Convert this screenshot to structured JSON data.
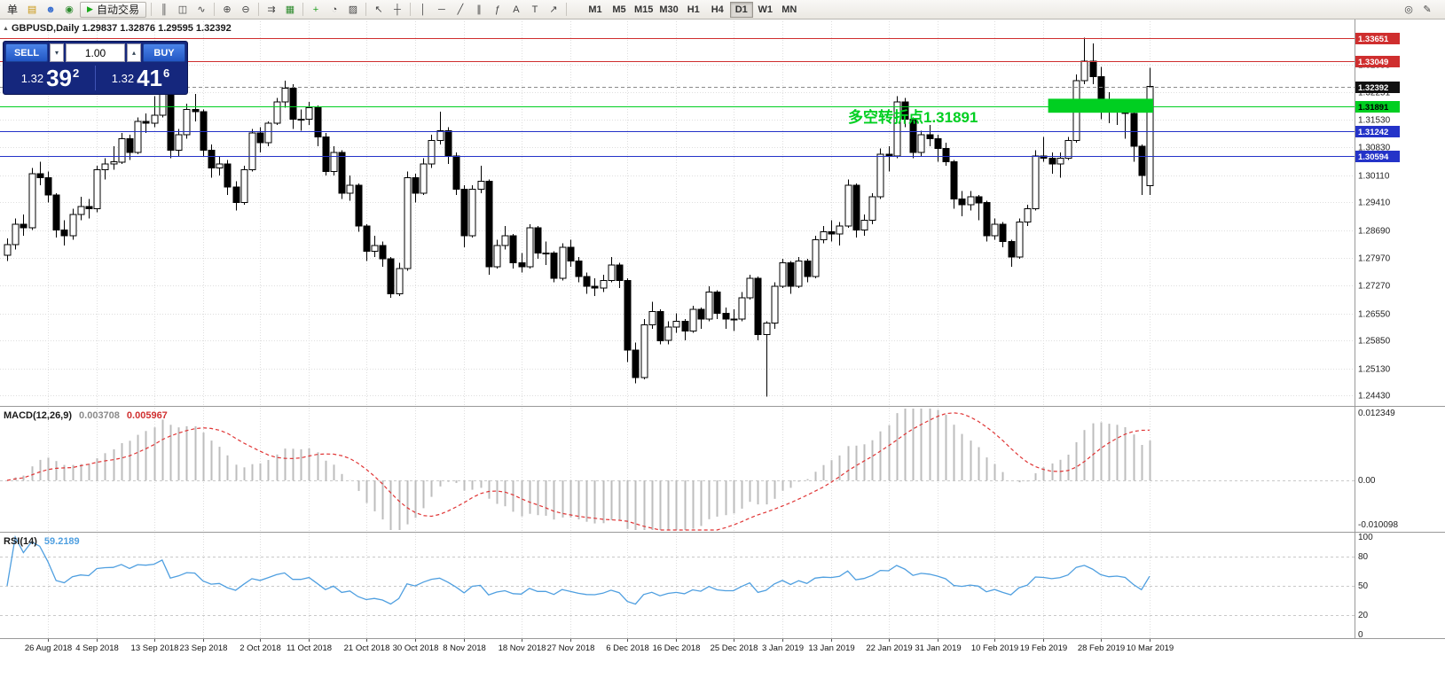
{
  "toolbar": {
    "left_text": "单",
    "autotrading_icon": "▶",
    "autotrading_label": "自动交易",
    "icons_left": [
      {
        "n": "charts-grid-icon",
        "g": "▤",
        "c": "#c8950f"
      },
      {
        "n": "profile-icon",
        "g": "☻",
        "c": "#3a6fd0"
      },
      {
        "n": "community-icon",
        "g": "◉",
        "c": "#2c8a2c"
      }
    ],
    "icons_main": [
      {
        "sep": 1
      },
      {
        "n": "bar-chart-icon",
        "g": "║"
      },
      {
        "n": "candlestick-chart-icon",
        "g": "◫"
      },
      {
        "n": "line-chart-icon",
        "g": "∿"
      },
      {
        "sep": 1
      },
      {
        "n": "zoom-in-icon",
        "g": "⊕"
      },
      {
        "n": "zoom-out-icon",
        "g": "⊖"
      },
      {
        "sep": 1
      },
      {
        "n": "auto-scroll-icon",
        "g": "⇉"
      },
      {
        "n": "chart-shift-icon",
        "g": "▦",
        "c": "#2c8a2c"
      },
      {
        "sep": 1
      },
      {
        "n": "indicators-icon",
        "g": "+",
        "c": "#1f9d1f"
      },
      {
        "n": "periods-icon",
        "g": "◔"
      },
      {
        "n": "templates-icon",
        "g": "▨"
      },
      {
        "sep": 1
      },
      {
        "n": "cursor-icon",
        "g": "↖"
      },
      {
        "n": "crosshair-icon",
        "g": "┼"
      },
      {
        "sep": 1
      },
      {
        "n": "vertical-line-icon",
        "g": "│"
      },
      {
        "n": "horizontal-line-icon",
        "g": "─"
      },
      {
        "n": "trendline-icon",
        "g": "╱"
      },
      {
        "n": "channel-icon",
        "g": "∥"
      },
      {
        "n": "fibonacci-icon",
        "g": "ƒ"
      },
      {
        "n": "text-icon",
        "g": "A"
      },
      {
        "n": "label-icon",
        "g": "T"
      },
      {
        "n": "arrows-icon",
        "g": "↗"
      },
      {
        "sep": 1
      }
    ],
    "timeframes": [
      "M1",
      "M5",
      "M15",
      "M30",
      "H1",
      "H4",
      "D1",
      "W1",
      "MN"
    ],
    "active_timeframe": "D1",
    "icons_right": [
      {
        "n": "search-icon",
        "g": "◎"
      },
      {
        "n": "settings-icon",
        "g": "✎"
      }
    ]
  },
  "chart": {
    "symbol_icon": "▲"
  },
  "trade_panel": {
    "sell_label": "SELL",
    "buy_label": "BUY",
    "lot": "1.00",
    "down_glyph": "▾",
    "up_glyph": "▴",
    "sell_price_main": "1.32",
    "sell_price_big": "39",
    "sell_price_sup": "2",
    "buy_price_main": "1.32",
    "buy_price_big": "41",
    "buy_price_sup": "6"
  },
  "chart_data": [
    {
      "type": "candlestick",
      "symbol": "GBPUSD",
      "period": "Daily",
      "title": "GBPUSD,Daily 1.29837 1.32876 1.29595 1.32392",
      "ohlc_display": {
        "open": 1.29837,
        "high": 1.32876,
        "low": 1.29595,
        "close": 1.32392
      },
      "x_labels": [
        "26 Aug 2018",
        "4 Sep 2018",
        "13 Sep 2018",
        "23 Sep 2018",
        "2 Oct 2018",
        "11 Oct 2018",
        "21 Oct 2018",
        "30 Oct 2018",
        "8 Nov 2018",
        "18 Nov 2018",
        "27 Nov 2018",
        "6 Dec 2018",
        "16 Dec 2018",
        "25 Dec 2018",
        "3 Jan 2019",
        "13 Jan 2019",
        "22 Jan 2019",
        "31 Jan 2019",
        "10 Feb 2019",
        "19 Feb 2019",
        "28 Feb 2019",
        "10 Mar 2019"
      ],
      "y_axis_labels": [
        "1.32958",
        "1.32251",
        "1.31530",
        "1.30830",
        "1.30110",
        "1.29410",
        "1.28690",
        "1.27970",
        "1.27270",
        "1.26550",
        "1.25850",
        "1.25130",
        "1.24430"
      ],
      "lines": [
        {
          "price": 1.33651,
          "color": "#cf2e2e",
          "style": "solid",
          "badge_bg": "#cf2e2e",
          "badge_text": "#ffffff",
          "label": "1.33651"
        },
        {
          "price": 1.33049,
          "color": "#cf2e2e",
          "style": "solid",
          "badge_bg": "#cf2e2e",
          "badge_text": "#ffffff",
          "label": "1.33049"
        },
        {
          "price": 1.32392,
          "color": "#8a8a8a",
          "style": "dash",
          "badge_bg": "#111111",
          "badge_text": "#ffffff",
          "label": "1.32392"
        },
        {
          "price": 1.31891,
          "color": "#00cf21",
          "style": "solid",
          "badge_bg": "#00cf21",
          "badge_text": "#000000",
          "label": "1.31891"
        },
        {
          "price": 1.31242,
          "color": "#2433c8",
          "style": "solid",
          "badge_bg": "#2433c8",
          "badge_text": "#ffffff",
          "label": "1.31242"
        },
        {
          "price": 1.30594,
          "color": "#2433c8",
          "style": "solid",
          "badge_bg": "#2433c8",
          "badge_text": "#ffffff",
          "label": "1.30594"
        }
      ],
      "highlight_rect": {
        "x_start_index": 128,
        "x_end_index": 140,
        "price_top": 1.3208,
        "price_bottom": 1.3172,
        "color": "#00cf21"
      },
      "annotation": {
        "text": "多空转折点1.31891",
        "color": "#00cf21"
      },
      "candles": [
        [
          1.2805,
          1.2848,
          1.279,
          1.2832
        ],
        [
          1.2832,
          1.29,
          1.282,
          1.2885
        ],
        [
          1.2885,
          1.291,
          1.2855,
          1.2875
        ],
        [
          1.2875,
          1.303,
          1.287,
          1.3015
        ],
        [
          1.3015,
          1.3045,
          1.2985,
          1.3005
        ],
        [
          1.3005,
          1.302,
          1.294,
          1.296
        ],
        [
          1.296,
          1.2965,
          1.285,
          1.287
        ],
        [
          1.287,
          1.2895,
          1.283,
          1.2855
        ],
        [
          1.2855,
          1.2925,
          1.2845,
          1.291
        ],
        [
          1.291,
          1.2955,
          1.2895,
          1.293
        ],
        [
          1.293,
          1.295,
          1.29,
          1.2925
        ],
        [
          1.2925,
          1.3035,
          1.2915,
          1.3025
        ],
        [
          1.3025,
          1.3055,
          1.3,
          1.304
        ],
        [
          1.304,
          1.3085,
          1.3025,
          1.3045
        ],
        [
          1.3045,
          1.312,
          1.304,
          1.3105
        ],
        [
          1.3105,
          1.3115,
          1.305,
          1.307
        ],
        [
          1.307,
          1.316,
          1.3065,
          1.315
        ],
        [
          1.315,
          1.317,
          1.312,
          1.3145
        ],
        [
          1.3145,
          1.3215,
          1.3135,
          1.3165
        ],
        [
          1.3165,
          1.3298,
          1.316,
          1.3265
        ],
        [
          1.3265,
          1.327,
          1.3055,
          1.3075
        ],
        [
          1.3075,
          1.313,
          1.306,
          1.3115
        ],
        [
          1.3115,
          1.3195,
          1.3105,
          1.318
        ],
        [
          1.318,
          1.322,
          1.315,
          1.3175
        ],
        [
          1.3175,
          1.318,
          1.306,
          1.3075
        ],
        [
          1.3075,
          1.309,
          1.3005,
          1.303
        ],
        [
          1.303,
          1.306,
          1.301,
          1.304
        ],
        [
          1.304,
          1.305,
          1.296,
          1.298
        ],
        [
          1.298,
          1.2995,
          1.292,
          1.294
        ],
        [
          1.294,
          1.3035,
          1.2935,
          1.3025
        ],
        [
          1.3025,
          1.313,
          1.302,
          1.312
        ],
        [
          1.312,
          1.3135,
          1.307,
          1.3095
        ],
        [
          1.3095,
          1.315,
          1.3085,
          1.3145
        ],
        [
          1.3145,
          1.321,
          1.314,
          1.32
        ],
        [
          1.32,
          1.3255,
          1.3185,
          1.3235
        ],
        [
          1.3235,
          1.3245,
          1.313,
          1.3155
        ],
        [
          1.3155,
          1.318,
          1.3125,
          1.3155
        ],
        [
          1.3155,
          1.32,
          1.314,
          1.3185
        ],
        [
          1.3185,
          1.319,
          1.3085,
          1.311
        ],
        [
          1.311,
          1.312,
          1.301,
          1.302
        ],
        [
          1.302,
          1.3085,
          1.301,
          1.307
        ],
        [
          1.307,
          1.3075,
          1.295,
          1.2965
        ],
        [
          1.2965,
          1.301,
          1.2945,
          1.2985
        ],
        [
          1.2985,
          1.299,
          1.2865,
          1.288
        ],
        [
          1.288,
          1.2885,
          1.279,
          1.2815
        ],
        [
          1.2815,
          1.2855,
          1.28,
          1.283
        ],
        [
          1.283,
          1.284,
          1.2775,
          1.2795
        ],
        [
          1.2795,
          1.28,
          1.2695,
          1.2705
        ],
        [
          1.2705,
          1.2785,
          1.27,
          1.277
        ],
        [
          1.277,
          1.302,
          1.2765,
          1.3005
        ],
        [
          1.3005,
          1.3015,
          1.294,
          1.2965
        ],
        [
          1.2965,
          1.3055,
          1.296,
          1.304
        ],
        [
          1.304,
          1.3115,
          1.303,
          1.31
        ],
        [
          1.31,
          1.3175,
          1.309,
          1.3125
        ],
        [
          1.3125,
          1.3135,
          1.304,
          1.306
        ],
        [
          1.306,
          1.307,
          1.296,
          1.2975
        ],
        [
          1.2975,
          1.2985,
          1.2825,
          1.2855
        ],
        [
          1.2855,
          1.2985,
          1.285,
          1.2975
        ],
        [
          1.2975,
          1.3035,
          1.2965,
          1.2995
        ],
        [
          1.2995,
          1.3,
          1.2755,
          1.2775
        ],
        [
          1.2775,
          1.2845,
          1.277,
          1.283
        ],
        [
          1.283,
          1.288,
          1.282,
          1.2855
        ],
        [
          1.2855,
          1.286,
          1.277,
          1.2785
        ],
        [
          1.2785,
          1.281,
          1.276,
          1.2775
        ],
        [
          1.2775,
          1.2885,
          1.277,
          1.2875
        ],
        [
          1.2875,
          1.288,
          1.2795,
          1.281
        ],
        [
          1.281,
          1.284,
          1.278,
          1.281
        ],
        [
          1.281,
          1.2815,
          1.2735,
          1.2745
        ],
        [
          1.2745,
          1.2835,
          1.274,
          1.2825
        ],
        [
          1.2825,
          1.2845,
          1.2775,
          1.279
        ],
        [
          1.279,
          1.28,
          1.2735,
          1.275
        ],
        [
          1.275,
          1.276,
          1.2705,
          1.2725
        ],
        [
          1.2725,
          1.2745,
          1.27,
          1.272
        ],
        [
          1.272,
          1.2755,
          1.271,
          1.274
        ],
        [
          1.274,
          1.28,
          1.2735,
          1.278
        ],
        [
          1.278,
          1.2785,
          1.272,
          1.274
        ],
        [
          1.274,
          1.2745,
          1.253,
          1.256
        ],
        [
          1.256,
          1.258,
          1.2475,
          1.249
        ],
        [
          1.249,
          1.264,
          1.2485,
          1.2625
        ],
        [
          1.2625,
          1.2685,
          1.2615,
          1.266
        ],
        [
          1.266,
          1.2665,
          1.2575,
          1.2585
        ],
        [
          1.2585,
          1.2635,
          1.2575,
          1.262
        ],
        [
          1.262,
          1.2655,
          1.2605,
          1.2635
        ],
        [
          1.2635,
          1.264,
          1.2585,
          1.261
        ],
        [
          1.261,
          1.2675,
          1.2605,
          1.2665
        ],
        [
          1.2665,
          1.267,
          1.2615,
          1.264
        ],
        [
          1.264,
          1.2725,
          1.2635,
          1.271
        ],
        [
          1.271,
          1.2715,
          1.264,
          1.2655
        ],
        [
          1.2655,
          1.267,
          1.2615,
          1.264
        ],
        [
          1.264,
          1.2665,
          1.261,
          1.264
        ],
        [
          1.264,
          1.271,
          1.2635,
          1.2695
        ],
        [
          1.2695,
          1.2755,
          1.269,
          1.2745
        ],
        [
          1.2745,
          1.275,
          1.2585,
          1.26
        ],
        [
          1.26,
          1.2635,
          1.244,
          1.263
        ],
        [
          1.263,
          1.2735,
          1.2615,
          1.2725
        ],
        [
          1.2725,
          1.2795,
          1.272,
          1.2785
        ],
        [
          1.2785,
          1.279,
          1.2705,
          1.2725
        ],
        [
          1.2725,
          1.28,
          1.272,
          1.279
        ],
        [
          1.279,
          1.2795,
          1.2735,
          1.275
        ],
        [
          1.275,
          1.2855,
          1.2745,
          1.2845
        ],
        [
          1.2845,
          1.288,
          1.2835,
          1.2865
        ],
        [
          1.2865,
          1.2895,
          1.284,
          1.286
        ],
        [
          1.286,
          1.289,
          1.283,
          1.288
        ],
        [
          1.288,
          1.3,
          1.2875,
          1.2985
        ],
        [
          1.2985,
          1.299,
          1.285,
          1.287
        ],
        [
          1.287,
          1.291,
          1.2855,
          1.2895
        ],
        [
          1.2895,
          1.2965,
          1.2885,
          1.2955
        ],
        [
          1.2955,
          1.308,
          1.295,
          1.3065
        ],
        [
          1.3065,
          1.3085,
          1.302,
          1.306
        ],
        [
          1.306,
          1.3215,
          1.3055,
          1.32
        ],
        [
          1.32,
          1.321,
          1.3135,
          1.3155
        ],
        [
          1.3155,
          1.316,
          1.3055,
          1.307
        ],
        [
          1.307,
          1.3125,
          1.306,
          1.3115
        ],
        [
          1.3115,
          1.314,
          1.3085,
          1.3105
        ],
        [
          1.3105,
          1.3115,
          1.3045,
          1.308
        ],
        [
          1.308,
          1.3095,
          1.3035,
          1.3045
        ],
        [
          1.3045,
          1.305,
          1.2925,
          1.295
        ],
        [
          1.295,
          1.297,
          1.2905,
          1.2935
        ],
        [
          1.2935,
          1.297,
          1.292,
          1.2955
        ],
        [
          1.2955,
          1.296,
          1.2895,
          1.294
        ],
        [
          1.294,
          1.2945,
          1.284,
          1.2855
        ],
        [
          1.2855,
          1.29,
          1.2845,
          1.2885
        ],
        [
          1.2885,
          1.289,
          1.2825,
          1.284
        ],
        [
          1.284,
          1.2845,
          1.2775,
          1.28
        ],
        [
          1.28,
          1.29,
          1.2795,
          1.289
        ],
        [
          1.289,
          1.2935,
          1.288,
          1.2925
        ],
        [
          1.2925,
          1.3075,
          1.292,
          1.306
        ],
        [
          1.306,
          1.311,
          1.3045,
          1.3055
        ],
        [
          1.3055,
          1.307,
          1.3015,
          1.304
        ],
        [
          1.304,
          1.307,
          1.3005,
          1.3055
        ],
        [
          1.3055,
          1.311,
          1.305,
          1.31
        ],
        [
          1.31,
          1.327,
          1.3095,
          1.3255
        ],
        [
          1.3255,
          1.3365,
          1.3245,
          1.3305
        ],
        [
          1.3305,
          1.335,
          1.3245,
          1.3265
        ],
        [
          1.3265,
          1.329,
          1.3155,
          1.32
        ],
        [
          1.32,
          1.3225,
          1.3145,
          1.3175
        ],
        [
          1.3175,
          1.32,
          1.314,
          1.3185
        ],
        [
          1.3185,
          1.3195,
          1.3105,
          1.317
        ],
        [
          1.317,
          1.318,
          1.3045,
          1.3085
        ],
        [
          1.3085,
          1.309,
          1.296,
          1.301
        ],
        [
          1.29837,
          1.32876,
          1.29595,
          1.32392
        ]
      ]
    },
    {
      "type": "macd",
      "label": "MACD(12,26,9)",
      "params": [
        12,
        26,
        9
      ],
      "values_display": [
        "0.003708",
        "0.005967"
      ],
      "y_axis_labels": [
        "0.012349",
        "0.00",
        "-0.010098"
      ],
      "histogram_color": "#bdbdbd",
      "signal_color": "#e03535",
      "signal_style": "dashed"
    },
    {
      "type": "rsi",
      "label": "RSI(14)",
      "period": 14,
      "value_display": "59.2189",
      "levels": [
        100,
        80,
        50,
        20,
        0
      ],
      "line_color": "#4f9fe0"
    }
  ]
}
